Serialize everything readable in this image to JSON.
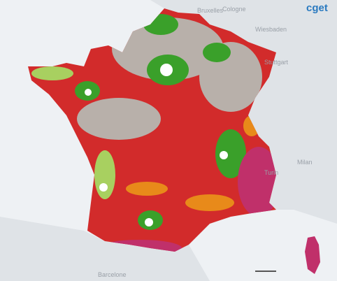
{
  "logo": "cget",
  "places": [
    "Bruxelles",
    "Cologne",
    "Wiesbaden",
    "Stuttgart",
    "Turin",
    "Milan",
    "Barcelone"
  ]
}
